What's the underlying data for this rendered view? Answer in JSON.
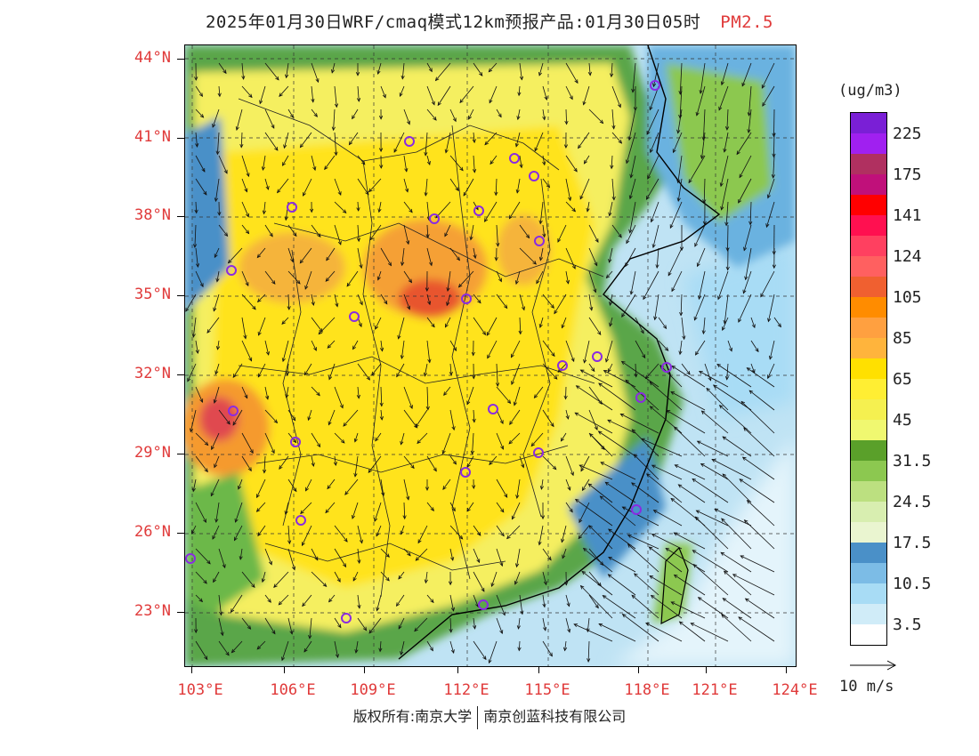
{
  "title": {
    "main": "2025年01月30日WRF/cmaq模式12km预报产品:01月30日05时",
    "product": "PM2.5"
  },
  "map": {
    "lat_labels": [
      "44°N",
      "41°N",
      "38°N",
      "35°N",
      "32°N",
      "29°N",
      "26°N",
      "23°N"
    ],
    "lon_labels": [
      "103°E",
      "106°E",
      "109°E",
      "112°E",
      "115°E",
      "118°E",
      "121°E",
      "124°E"
    ],
    "extent": {
      "lon_min": 102.8,
      "lon_max": 124.0,
      "lat_min": 21.0,
      "lat_max": 44.5
    },
    "city_marker_color": "#8a2be2",
    "ocean_color": "#c8e9f7"
  },
  "legend": {
    "unit": "(ug/m3)",
    "colors": [
      "#7a1fd6",
      "#a020f0",
      "#b03060",
      "#c0107a",
      "#ff0000",
      "#ff1050",
      "#ff4060",
      "#ff6060",
      "#f06030",
      "#ff8c00",
      "#ffa040",
      "#ffb43c",
      "#ffe000",
      "#ffee33",
      "#f5f050",
      "#f0f870",
      "#5aa02a",
      "#8cc850",
      "#bce080",
      "#d8eeb0",
      "#eaf5d0",
      "#4a90c8",
      "#7cbce6",
      "#a8dcf5",
      "#d0ecf8",
      "#ffffff"
    ],
    "labels": [
      "225",
      "175",
      "141",
      "124",
      "105",
      "85",
      "65",
      "45",
      "31.5",
      "24.5",
      "17.5",
      "10.5",
      "3.5"
    ]
  },
  "vector_reference": {
    "label": "10 m/s"
  },
  "footer": {
    "left": "版权所有:南京大学",
    "right": "南京创蓝科技有限公司"
  }
}
